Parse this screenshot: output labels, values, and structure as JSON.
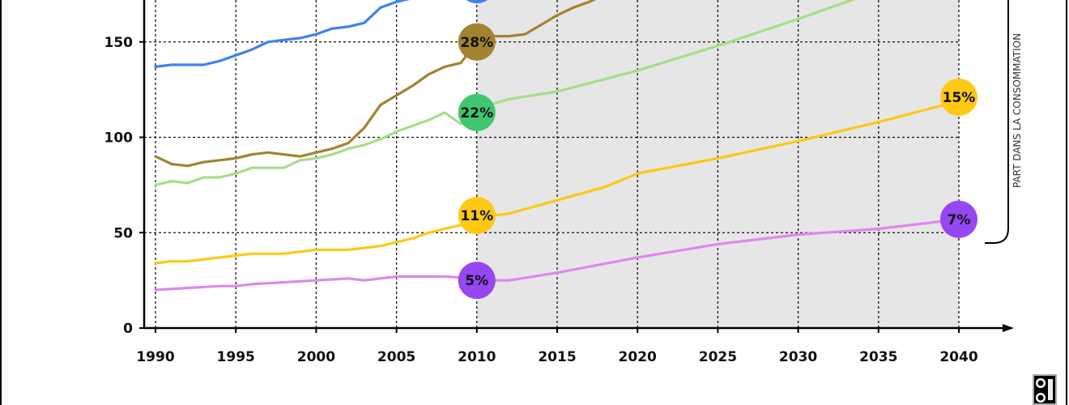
{
  "chart_data": {
    "type": "line",
    "title": "",
    "xlabel": "",
    "ylabel": "",
    "xlim": [
      1990,
      2040
    ],
    "ylim": [
      0,
      195
    ],
    "x_ticks": [
      "1990",
      "1995",
      "2000",
      "2005",
      "2010",
      "2015",
      "2020",
      "2025",
      "2030",
      "2035",
      "2040"
    ],
    "y_ticks": [
      "0",
      "50",
      "100",
      "150"
    ],
    "grid": true,
    "projection_shading_from": 2010,
    "side_label": "PART DANS LA CONSOMMATION",
    "series": [
      {
        "color": "#3d82f4",
        "x": [
          1990,
          1991,
          1993,
          1994,
          1995,
          1996,
          1997,
          1998,
          1999,
          2000,
          2001,
          2002,
          2003,
          2004,
          2005,
          2006,
          2007,
          2008,
          2009,
          2010
        ],
        "y": [
          137,
          138,
          138,
          140,
          143,
          146,
          150,
          151,
          152,
          154,
          157,
          158,
          160,
          168,
          171,
          173,
          175,
          177,
          179,
          180
        ]
      },
      {
        "color": "#a18332",
        "x": [
          1990,
          1991,
          1992,
          1993,
          1994,
          1995,
          1996,
          1997,
          1998,
          1999,
          2000,
          2001,
          2002,
          2003,
          2004,
          2005,
          2006,
          2007,
          2008,
          2009,
          2010,
          2011,
          2012,
          2013,
          2014,
          2015,
          2016,
          2017,
          2018,
          2019
        ],
        "y": [
          90,
          86,
          85,
          87,
          88,
          89,
          91,
          92,
          91,
          90,
          92,
          94,
          97,
          105,
          117,
          122,
          127,
          133,
          137,
          139,
          150,
          153,
          153,
          154,
          159,
          164,
          168,
          171,
          175,
          180
        ]
      },
      {
        "color": "#a7dd8a",
        "x": [
          1990,
          1991,
          1992,
          1993,
          1994,
          1995,
          1996,
          1997,
          1998,
          1999,
          2000,
          2001,
          2002,
          2003,
          2004,
          2005,
          2006,
          2007,
          2008,
          2009,
          2010,
          2012,
          2015,
          2020,
          2025,
          2030,
          2035,
          2036
        ],
        "y": [
          75,
          77,
          76,
          79,
          79,
          81,
          84,
          84,
          84,
          88,
          89,
          91,
          94,
          96,
          99,
          103,
          106,
          109,
          113,
          107,
          115,
          120,
          124,
          135,
          148,
          162,
          177,
          183
        ]
      },
      {
        "color": "#ffc814",
        "x": [
          1990,
          1991,
          1992,
          1993,
          1994,
          1995,
          1996,
          1997,
          1998,
          1999,
          2000,
          2001,
          2002,
          2003,
          2004,
          2005,
          2006,
          2007,
          2008,
          2009,
          2010,
          2011,
          2012,
          2015,
          2018,
          2020,
          2025,
          2030,
          2035,
          2040
        ],
        "y": [
          34,
          35,
          35,
          36,
          37,
          38,
          39,
          39,
          39,
          40,
          41,
          41,
          41,
          42,
          43,
          45,
          47,
          50,
          52,
          54,
          57,
          59,
          60,
          67,
          74,
          81,
          89,
          98,
          108,
          119
        ]
      },
      {
        "color": "#dd88ee",
        "x": [
          1990,
          1992,
          1994,
          1995,
          1996,
          1998,
          2000,
          2002,
          2003,
          2004,
          2005,
          2006,
          2008,
          2010,
          2011,
          2012,
          2015,
          2020,
          2025,
          2030,
          2035,
          2040
        ],
        "y": [
          20,
          21,
          22,
          22,
          23,
          24,
          25,
          26,
          25,
          26,
          27,
          27,
          27,
          26,
          25,
          25,
          29,
          37,
          44,
          49,
          52,
          57
        ]
      }
    ],
    "markers": [
      {
        "x": 2010,
        "y": 180,
        "label": "",
        "color": "#3d82f4"
      },
      {
        "x": 2010,
        "y": 150,
        "label": "28%",
        "color": "#a18332"
      },
      {
        "x": 2010,
        "y": 113,
        "label": "22%",
        "color": "#3ec76f"
      },
      {
        "x": 2010,
        "y": 59,
        "label": "11%",
        "color": "#ffc814"
      },
      {
        "x": 2010,
        "y": 25,
        "label": "5%",
        "color": "#9447f3"
      },
      {
        "x": 2040,
        "y": 121,
        "label": "15%",
        "color": "#ffc814"
      },
      {
        "x": 2040,
        "y": 57,
        "label": "7%",
        "color": "#9447f3"
      }
    ]
  },
  "license": {
    "icons": [
      "cc-by-icon",
      "cc-sa-icon"
    ]
  }
}
